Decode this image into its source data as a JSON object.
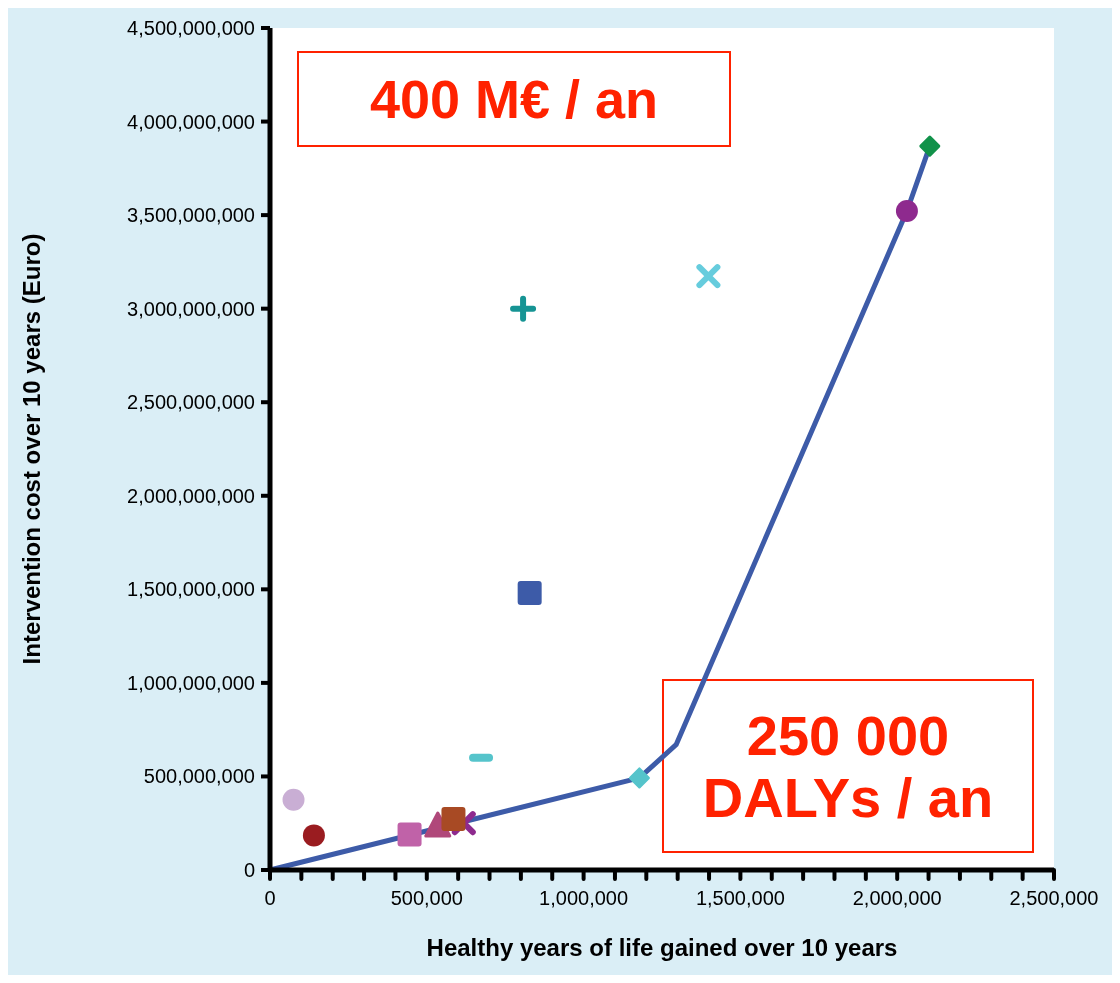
{
  "chart_data": {
    "type": "scatter",
    "xlabel": "Healthy years of life gained over 10 years",
    "ylabel": "Intervention cost over 10 years (Euro)",
    "xlim": [
      0,
      2500000
    ],
    "ylim": [
      0,
      4500000000
    ],
    "xticks": [
      {
        "value": 0,
        "label": "0"
      },
      {
        "value": 100000,
        "label": null
      },
      {
        "value": 200000,
        "label": null
      },
      {
        "value": 300000,
        "label": null
      },
      {
        "value": 400000,
        "label": null
      },
      {
        "value": 500000,
        "label": "500,000"
      },
      {
        "value": 600000,
        "label": null
      },
      {
        "value": 700000,
        "label": null
      },
      {
        "value": 800000,
        "label": null
      },
      {
        "value": 900000,
        "label": null
      },
      {
        "value": 1000000,
        "label": "1,000,000"
      },
      {
        "value": 1100000,
        "label": null
      },
      {
        "value": 1200000,
        "label": null
      },
      {
        "value": 1300000,
        "label": null
      },
      {
        "value": 1400000,
        "label": null
      },
      {
        "value": 1500000,
        "label": "1,500,000"
      },
      {
        "value": 1600000,
        "label": null
      },
      {
        "value": 1700000,
        "label": null
      },
      {
        "value": 1800000,
        "label": null
      },
      {
        "value": 1900000,
        "label": null
      },
      {
        "value": 2000000,
        "label": "2,000,000"
      },
      {
        "value": 2100000,
        "label": null
      },
      {
        "value": 2200000,
        "label": null
      },
      {
        "value": 2300000,
        "label": null
      },
      {
        "value": 2400000,
        "label": null
      },
      {
        "value": 2500000,
        "label": "2,500,000"
      }
    ],
    "yticks": [
      {
        "value": 0,
        "label": "0"
      },
      {
        "value": 500000000,
        "label": "500,000,000"
      },
      {
        "value": 1000000000,
        "label": "1,000,000,000"
      },
      {
        "value": 1500000000,
        "label": "1,500,000,000"
      },
      {
        "value": 2000000000,
        "label": "2,000,000,000"
      },
      {
        "value": 2500000000,
        "label": "2,500,000,000"
      },
      {
        "value": 3000000000,
        "label": "3,000,000,000"
      },
      {
        "value": 3500000000,
        "label": "3,500,000,000"
      },
      {
        "value": 4000000000,
        "label": "4,000,000,000"
      },
      {
        "value": 4500000000,
        "label": "4,500,000,000"
      }
    ],
    "grid": false,
    "series": [
      {
        "type": "line",
        "color": "#3d5ba8",
        "marker": "none",
        "line_style": "solid",
        "x": [
          0,
          1178000,
          1295000,
          2031000,
          2104000
        ],
        "values": [
          0,
          492000000,
          670000000,
          3522000000,
          3869000000
        ]
      },
      {
        "color": "#c9aed4",
        "marker": "circle",
        "x": [
          75000
        ],
        "values": [
          375000000
        ]
      },
      {
        "color": "#9a1c20",
        "marker": "circle",
        "x": [
          140000
        ],
        "values": [
          185000000
        ]
      },
      {
        "color": "#c062a8",
        "marker": "square",
        "x": [
          445000
        ],
        "values": [
          190000000
        ]
      },
      {
        "color": "#b0487a",
        "marker": "triangle",
        "x": [
          535000
        ],
        "values": [
          235000000
        ]
      },
      {
        "color": "#8e2a8e",
        "marker": "x",
        "x": [
          618000
        ],
        "values": [
          250000000
        ]
      },
      {
        "color": "#a84a24",
        "marker": "square",
        "x": [
          585000
        ],
        "values": [
          272000000
        ]
      },
      {
        "color": "#55c4cb",
        "x": [
          673000
        ],
        "values": [
          600000000
        ]
      },
      {
        "color": "#55c4cb",
        "marker": "diamond",
        "x": [
          1178000
        ],
        "values": [
          492000000
        ]
      },
      {
        "color": "#3d5ba8",
        "marker": "square",
        "x": [
          828000
        ],
        "values": [
          1480000000
        ]
      },
      {
        "color": "#169494",
        "marker": "cross",
        "x": [
          807000
        ],
        "values": [
          3000000000
        ]
      },
      {
        "color": "#66ccdd",
        "marker": "x",
        "x": [
          1398000
        ],
        "values": [
          3174000000
        ]
      },
      {
        "color": "#8e2a8e",
        "marker": "circle",
        "x": [
          2031000
        ],
        "values": [
          3522000000
        ]
      },
      {
        "color": "#11924a",
        "marker": "diamond",
        "x": [
          2104000
        ],
        "values": [
          3869000000
        ]
      }
    ],
    "annotations": [
      "400 M€ / an",
      "250 000\nDALYs / an"
    ]
  }
}
